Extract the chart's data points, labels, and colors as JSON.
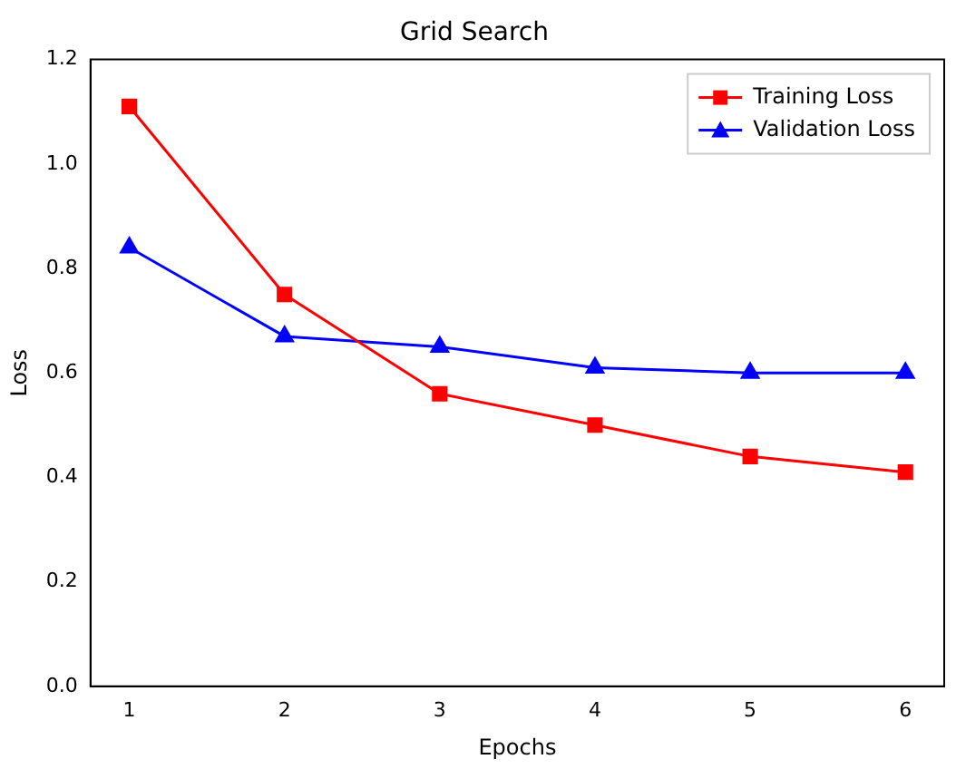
{
  "chart_data": {
    "type": "line",
    "title": "Grid Search",
    "xlabel": "Epochs",
    "ylabel": "Loss",
    "x": [
      1,
      2,
      3,
      4,
      5,
      6
    ],
    "series": [
      {
        "name": "Training Loss",
        "color": "#ff0000",
        "marker": "square",
        "values": [
          1.11,
          0.75,
          0.56,
          0.5,
          0.44,
          0.41
        ]
      },
      {
        "name": "Validation Loss",
        "color": "#0000ff",
        "marker": "triangle",
        "values": [
          0.84,
          0.67,
          0.65,
          0.61,
          0.6,
          0.6
        ]
      }
    ],
    "xlim": [
      0.75,
      6.25
    ],
    "xticks": [
      1,
      2,
      3,
      4,
      5,
      6
    ],
    "ylim": [
      0,
      1.2
    ],
    "yticks": [
      {
        "value": 0,
        "label": "0.0"
      },
      0.2,
      0.4,
      0.6,
      0.8,
      {
        "value": 1,
        "label": "1.0"
      },
      1.2
    ],
    "grid": false,
    "legend": "top right",
    "line_style": "solid"
  }
}
